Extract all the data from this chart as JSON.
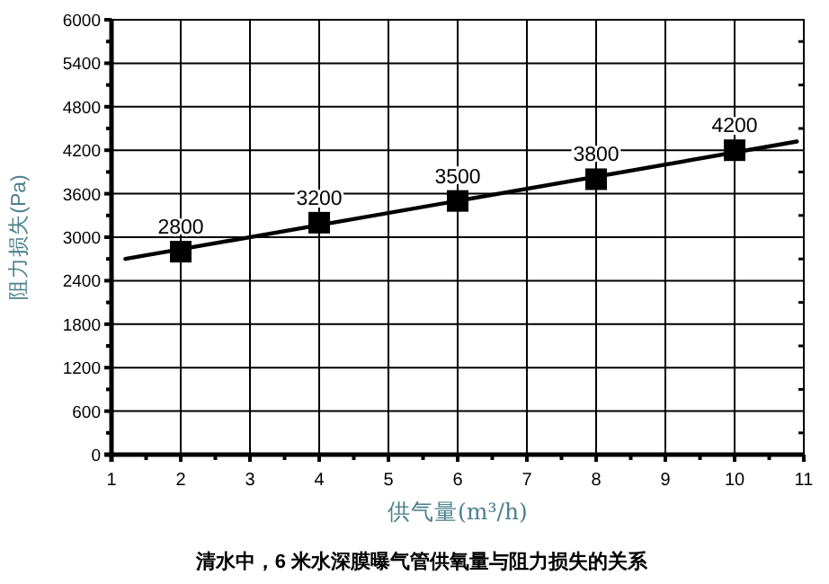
{
  "chart_data": {
    "type": "scatter",
    "xlabel": "供气量(m³/h)",
    "ylabel": "阻力损失(Pa)",
    "annotations": [
      "清水中，6 米水深膜曝气管供氧量与阻力损失的关系"
    ],
    "series": [
      {
        "type": "line",
        "color": "#000000",
        "x": [
          1.2,
          10.9
        ],
        "values": [
          2700,
          4320
        ],
        "marker": "none",
        "line_style": "solid"
      },
      {
        "color": "#000000",
        "x": [
          2,
          4,
          6,
          8,
          10
        ],
        "values": [
          2800,
          3200,
          3500,
          3800,
          4200
        ],
        "marker": "square",
        "value_labels": [
          "2800",
          "3200",
          "3500",
          "3800",
          "4200"
        ]
      }
    ],
    "xlim": [
      1,
      11
    ],
    "xticks": [
      1,
      2,
      3,
      4,
      5,
      6,
      7,
      8,
      9,
      10,
      11
    ],
    "ylim": [
      0,
      6000
    ],
    "yticks": [
      0,
      600,
      1200,
      1800,
      2400,
      3000,
      3600,
      4200,
      4800,
      5400,
      6000
    ],
    "grid": true
  }
}
